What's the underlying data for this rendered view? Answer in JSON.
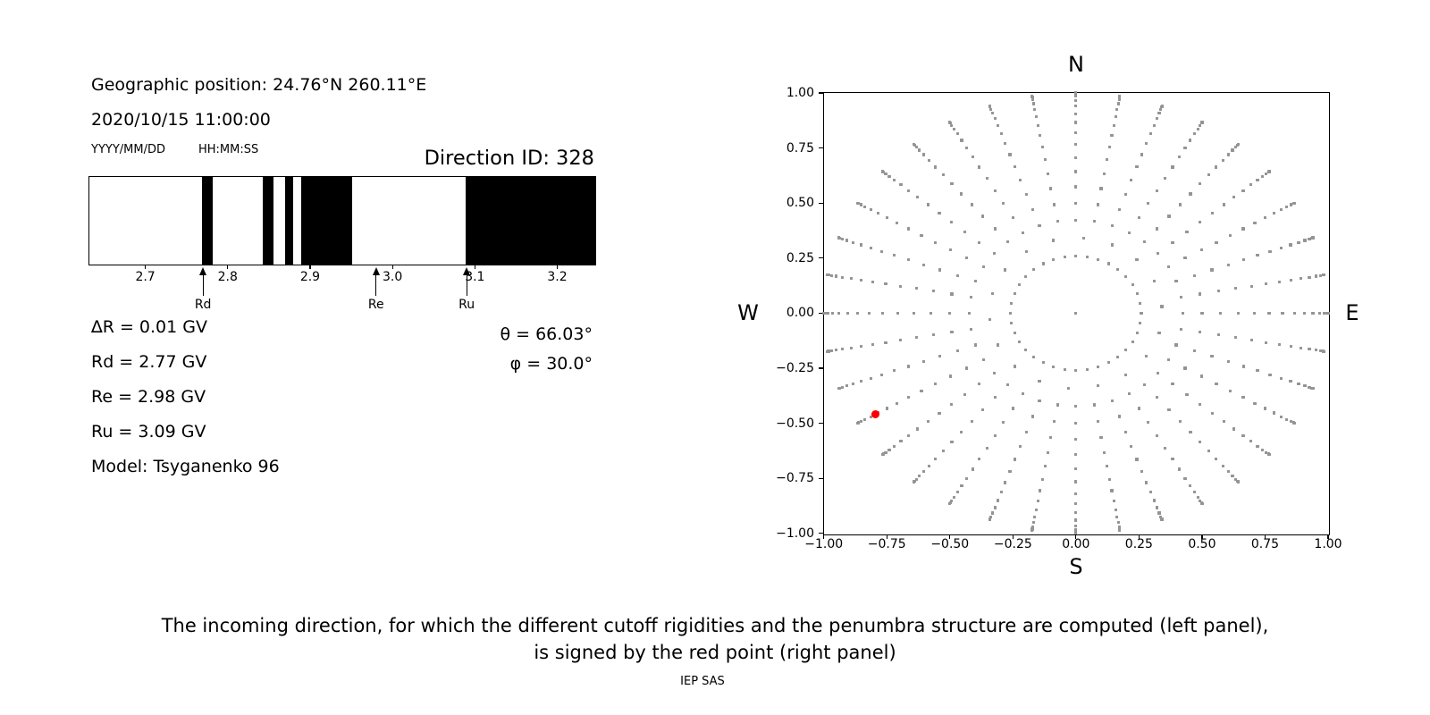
{
  "header": {
    "geo_position": "Geographic position: 24.76°N 260.11°E",
    "datetime": "2020/10/15 11:00:00",
    "date_format_label": "YYYY/MM/DD",
    "time_format_label": "HH:MM:SS",
    "direction_id": "Direction ID: 328"
  },
  "left_values": [
    {
      "id": "delta-r",
      "text": "∆R = 0.01 GV"
    },
    {
      "id": "rd",
      "text": "Rd = 2.77 GV"
    },
    {
      "id": "re",
      "text": "Re = 2.98 GV"
    },
    {
      "id": "ru",
      "text": "Ru = 3.09 GV"
    },
    {
      "id": "model",
      "text": "Model: Tsyganenko 96"
    }
  ],
  "right_values": [
    {
      "id": "theta",
      "text": "θ = 66.03°"
    },
    {
      "id": "phi",
      "text": "φ = 30.0°"
    }
  ],
  "caption": {
    "line1": "The incoming direction, for which the different cutoff rigidities and the penumbra structure are computed (left panel),",
    "line2": "is signed by the red point (right panel)"
  },
  "footer": {
    "credit": "IEP SAS"
  },
  "colors": {
    "band": "#000000",
    "dot_gray": "#949494",
    "red_point": "#ff0000",
    "grid": "#ebebeb"
  },
  "chart_data": [
    {
      "type": "bar",
      "name": "penumbra-structure",
      "description": "Cutoff rigidity penumbra: black bands = forbidden rigidity intervals, white = allowed",
      "xlim": [
        2.631,
        3.245
      ],
      "x_ticks": [
        2.7,
        2.8,
        2.9,
        3.0,
        3.1,
        3.2
      ],
      "x_tick_labels": [
        "2.7",
        "2.8",
        "2.9",
        "3.0",
        "3.1",
        "3.2"
      ],
      "black_bands_gv": [
        [
          2.768,
          2.781
        ],
        [
          2.841,
          2.854
        ],
        [
          2.869,
          2.878
        ],
        [
          2.888,
          2.95
        ],
        [
          3.088,
          3.245
        ]
      ],
      "markers": [
        {
          "label": "Rd",
          "value": 2.77
        },
        {
          "label": "Re",
          "value": 2.98
        },
        {
          "label": "Ru",
          "value": 3.09
        }
      ],
      "delta_r_gv": 0.01,
      "rd_gv": 2.77,
      "re_gv": 2.98,
      "ru_gv": 3.09,
      "model": "Tsyganenko 96"
    },
    {
      "type": "scatter",
      "name": "direction-grid",
      "compass_labels": {
        "top": "N",
        "bottom": "S",
        "left": "W",
        "right": "E"
      },
      "xlim": [
        -1.0,
        1.0
      ],
      "ylim": [
        -1.0,
        1.0
      ],
      "x_ticks": [
        -1.0,
        -0.75,
        -0.5,
        -0.25,
        0.0,
        0.25,
        0.5,
        0.75,
        1.0
      ],
      "x_tick_labels": [
        "−1.00",
        "−0.75",
        "−0.50",
        "−0.25",
        "0.00",
        "0.25",
        "0.50",
        "0.75",
        "1.00"
      ],
      "y_tick_labels_top_to_bottom": [
        "1.00",
        "0.75",
        "0.50",
        "0.25",
        "0.00",
        "−0.25",
        "−0.50",
        "−0.75",
        "−1.00"
      ],
      "grid": true,
      "projection": "r = sin(zenith)",
      "direction_grid": {
        "azimuth_step_deg": 10,
        "ring_radii": [
          0.259,
          0.423,
          0.5,
          0.574,
          0.643,
          0.707,
          0.766,
          0.819,
          0.866,
          0.906,
          0.94,
          0.966,
          0.985,
          0.996,
          1.0
        ],
        "sparse_ring": {
          "radius": 0.342,
          "azimuth_step_deg": 20,
          "azimuth_offset_deg": 5
        },
        "center_point": true
      },
      "red_point": {
        "x": -0.796,
        "y": -0.461,
        "theta_deg": 66.03,
        "phi_deg": 30.0
      }
    }
  ]
}
